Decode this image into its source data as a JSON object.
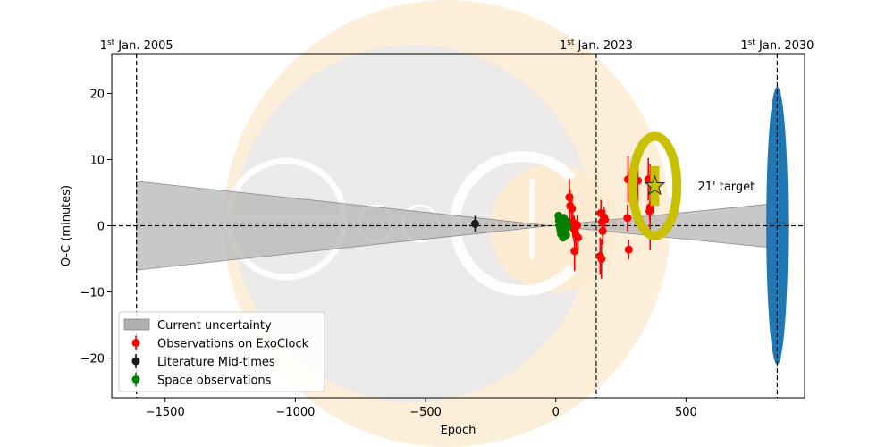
{
  "chart_data": {
    "type": "scatter",
    "title": "",
    "xlabel": "Epoch",
    "ylabel": "O-C (minutes)",
    "xlim": [
      -1705,
      955
    ],
    "ylim": [
      -26,
      26
    ],
    "x_ticks": [
      -1500,
      -1000,
      -500,
      0,
      500
    ],
    "x_tick_labels": [
      "−1500",
      "−1000",
      "−500",
      "0",
      "500"
    ],
    "y_ticks": [
      -20,
      -10,
      0,
      10,
      20
    ],
    "y_tick_labels": [
      "−20",
      "−10",
      "0",
      "10",
      "20"
    ],
    "grid": false,
    "legend_position": "lower-left",
    "reference_lines": [
      {
        "x": -1610,
        "label_main": "1",
        "label_sup": "st",
        "label_rest": " Jan. 2005"
      },
      {
        "x": 155,
        "label_main": "1",
        "label_sup": "st",
        "label_rest": " Jan. 2023"
      },
      {
        "x": 850,
        "label_main": "1",
        "label_sup": "st",
        "label_rest": " Jan. 2030"
      }
    ],
    "horizontal_line_y": 0,
    "uncertainty_band": {
      "name": "Current uncertainty",
      "color": "#b0b0b0",
      "x": [
        -1610,
        850
      ],
      "upper": [
        6.7,
        3.4
      ],
      "lower": [
        -6.7,
        -3.4
      ],
      "pivot_x": -20
    },
    "prediction_ellipse": {
      "x": 850,
      "y": 0,
      "half_width_epochs": 42,
      "half_height": 21,
      "color": "#1f77b4"
    },
    "target": {
      "x": 380,
      "y": 6,
      "label": "21' target",
      "color": "#c8c000",
      "error_bar": [
        3,
        9
      ],
      "ring_radius_epochs": 85,
      "ring_radius_minutes": 7.5
    },
    "series": [
      {
        "name": "Observations on ExoClock",
        "color": "#ff0000",
        "points": [
          {
            "x": 52,
            "y": 4.3,
            "err": 2.8
          },
          {
            "x": 55,
            "y": 3.0,
            "err": 2.5
          },
          {
            "x": 62,
            "y": 2.6,
            "err": 2.2
          },
          {
            "x": 65,
            "y": 0.5,
            "err": 2.0
          },
          {
            "x": 70,
            "y": -0.5,
            "err": 2.0
          },
          {
            "x": 72,
            "y": -3.8,
            "err": 3.0
          },
          {
            "x": 78,
            "y": -1.5,
            "err": 2.0
          },
          {
            "x": 82,
            "y": 0.1,
            "err": 1.5
          },
          {
            "x": 85,
            "y": -1.8,
            "err": 2.0
          },
          {
            "x": 170,
            "y": -4.6,
            "err": 2.8
          },
          {
            "x": 173,
            "y": 1.9,
            "err": 2.0
          },
          {
            "x": 175,
            "y": -5.0,
            "err": 3.0
          },
          {
            "x": 178,
            "y": 0.6,
            "err": 1.8
          },
          {
            "x": 180,
            "y": -0.8,
            "err": 2.0
          },
          {
            "x": 185,
            "y": 1.3,
            "err": 1.5
          },
          {
            "x": 188,
            "y": 0.9,
            "err": 1.5
          },
          {
            "x": 275,
            "y": 1.2,
            "err": 2.0
          },
          {
            "x": 277,
            "y": 7.0,
            "err": 3.5
          },
          {
            "x": 280,
            "y": -3.6,
            "err": 1.5
          },
          {
            "x": 315,
            "y": 6.8,
            "err": 3.2
          },
          {
            "x": 355,
            "y": 7.0,
            "err": 3.2
          },
          {
            "x": 360,
            "y": 2.2,
            "err": 1.5
          },
          {
            "x": 362,
            "y": 2.8,
            "err": 6.5
          }
        ]
      },
      {
        "name": "Literature Mid-times",
        "color": "#1a1a1a",
        "points": [
          {
            "x": -310,
            "y": 0.3,
            "err": 1.2
          }
        ]
      },
      {
        "name": "Space observations",
        "color": "#008000",
        "points": [
          {
            "x": 10,
            "y": 1.5,
            "err": 0.5
          },
          {
            "x": 12,
            "y": 0.8,
            "err": 0.5
          },
          {
            "x": 14,
            "y": 0.2,
            "err": 0.5
          },
          {
            "x": 16,
            "y": -0.3,
            "err": 0.5
          },
          {
            "x": 18,
            "y": -0.8,
            "err": 0.5
          },
          {
            "x": 20,
            "y": -1.3,
            "err": 0.5
          },
          {
            "x": 22,
            "y": 1.0,
            "err": 0.5
          },
          {
            "x": 24,
            "y": -0.5,
            "err": 0.5
          },
          {
            "x": 26,
            "y": 0.5,
            "err": 0.5
          },
          {
            "x": 28,
            "y": -1.8,
            "err": 0.5
          },
          {
            "x": 30,
            "y": 1.2,
            "err": 0.5
          },
          {
            "x": 32,
            "y": -1.0,
            "err": 0.5
          },
          {
            "x": 34,
            "y": 0.0,
            "err": 0.5
          },
          {
            "x": 36,
            "y": -0.6,
            "err": 0.5
          },
          {
            "x": 38,
            "y": 0.7,
            "err": 0.5
          },
          {
            "x": 40,
            "y": -1.4,
            "err": 0.5
          },
          {
            "x": 42,
            "y": 0.3,
            "err": 0.5
          },
          {
            "x": 44,
            "y": -0.2,
            "err": 0.5
          }
        ]
      }
    ],
    "legend": [
      {
        "label": "Current uncertainty",
        "kind": "patch",
        "color": "#b0b0b0"
      },
      {
        "label": "Observations on ExoClock",
        "kind": "errorbar",
        "color": "#ff0000"
      },
      {
        "label": "Literature Mid-times",
        "kind": "errorbar",
        "color": "#1a1a1a"
      },
      {
        "label": "Space observations",
        "kind": "errorbar",
        "color": "#008000"
      }
    ]
  },
  "watermark": {
    "text_1": "exo",
    "text_2": "clock"
  }
}
